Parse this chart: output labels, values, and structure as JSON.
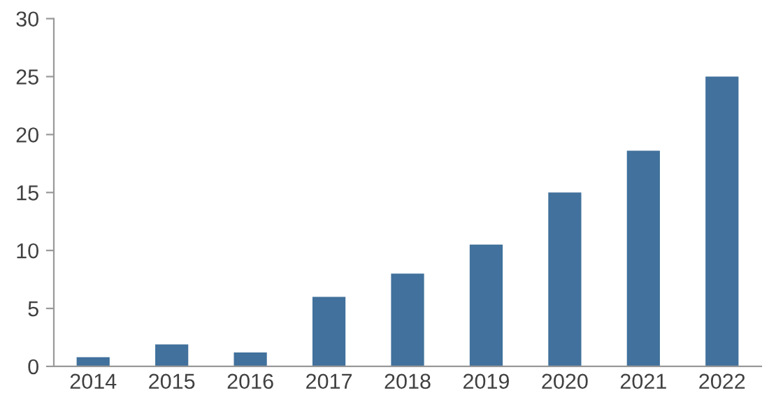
{
  "chart_data": {
    "type": "bar",
    "categories": [
      "2014",
      "2015",
      "2016",
      "2017",
      "2018",
      "2019",
      "2020",
      "2021",
      "2022"
    ],
    "values": [
      0.8,
      1.9,
      1.2,
      6.0,
      8.0,
      10.5,
      15.0,
      18.6,
      25.0
    ],
    "color": "#41719c",
    "ylim": [
      0,
      30
    ],
    "yticks": [
      0,
      5,
      10,
      15,
      20,
      25,
      30
    ],
    "grid": false,
    "legend": false
  }
}
